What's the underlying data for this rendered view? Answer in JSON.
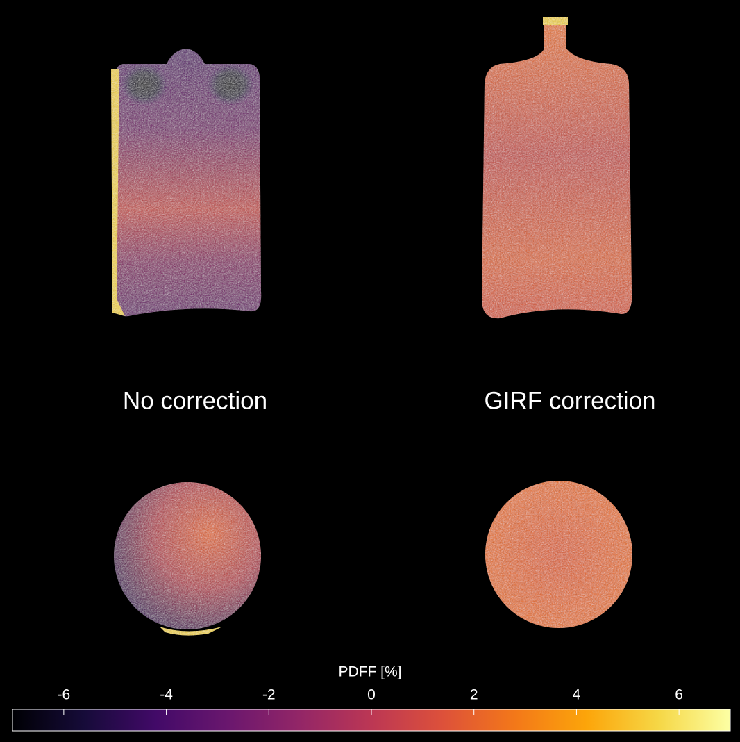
{
  "panels": [
    {
      "label": "No correction"
    },
    {
      "label": "GIRF correction"
    }
  ],
  "colorbar": {
    "label": "PDFF [%]",
    "lim": [
      -7,
      7
    ],
    "ticks": [
      -6,
      -4,
      -2,
      0,
      2,
      4,
      6
    ]
  }
}
